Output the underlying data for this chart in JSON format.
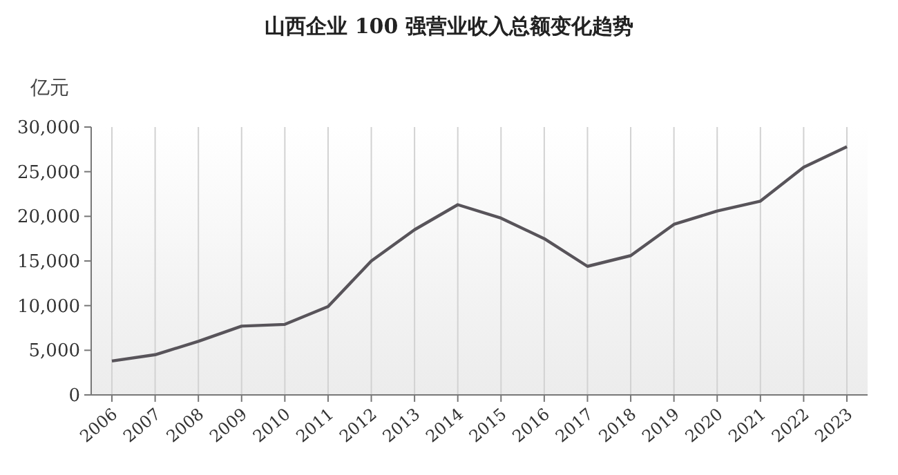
{
  "chart_data": {
    "type": "line",
    "title": "山西企业 100 强营业收入总额变化趋势",
    "ylabel": "亿元",
    "categories": [
      "2006",
      "2007",
      "2008",
      "2009",
      "2010",
      "2011",
      "2012",
      "2013",
      "2014",
      "2015",
      "2016",
      "2017",
      "2018",
      "2019",
      "2020",
      "2021",
      "2022",
      "2023"
    ],
    "series": [
      {
        "color": "#58545a",
        "values": [
          3800,
          4500,
          6000,
          7700,
          7900,
          9900,
          15000,
          18500,
          21300,
          19800,
          17500,
          14400,
          15600,
          19100,
          20600,
          21700,
          25500,
          27800
        ]
      }
    ],
    "ylim": [
      0,
      30000
    ],
    "yticks": [
      {
        "value": 0,
        "label": "0"
      },
      {
        "value": 5000,
        "label": "5,000"
      },
      {
        "value": 10000,
        "label": "10,000"
      },
      {
        "value": 15000,
        "label": "15,000"
      },
      {
        "value": 20000,
        "label": "20,000"
      },
      {
        "value": 25000,
        "label": "25,000"
      },
      {
        "value": 30000,
        "label": "30,000"
      }
    ],
    "grid": "x",
    "marker": "none",
    "line_style": "solid"
  }
}
